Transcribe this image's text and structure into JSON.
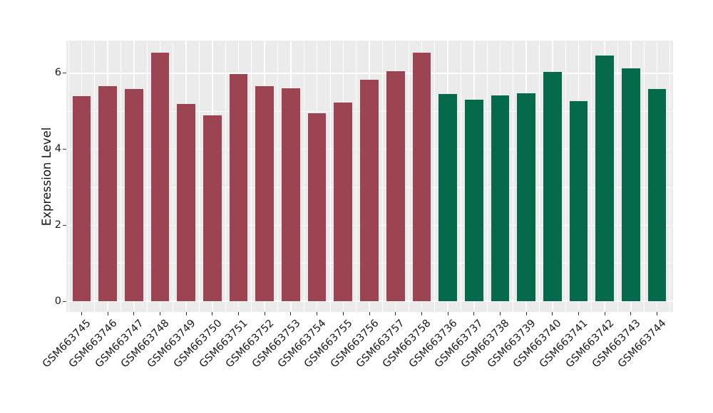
{
  "figure": {
    "background": "#FFFFFF",
    "panel_background": "#EBEBEB",
    "grid_color": "#FFFFFF",
    "tick_color": "#333333",
    "axis_text_color": "#1A1A1A"
  },
  "chart_data": {
    "type": "bar",
    "title": "",
    "xlabel": "",
    "ylabel": "Expression Level",
    "categories": [
      "GSM663745",
      "GSM663746",
      "GSM663747",
      "GSM663748",
      "GSM663749",
      "GSM663750",
      "GSM663751",
      "GSM663752",
      "GSM663753",
      "GSM663754",
      "GSM663755",
      "GSM663756",
      "GSM663757",
      "GSM663758",
      "GSM663736",
      "GSM663737",
      "GSM663738",
      "GSM663739",
      "GSM663740",
      "GSM663741",
      "GSM663742",
      "GSM663743",
      "GSM663744"
    ],
    "values": [
      5.39,
      5.67,
      5.58,
      6.54,
      5.2,
      4.89,
      5.98,
      5.67,
      5.61,
      4.94,
      5.23,
      5.83,
      6.05,
      6.55,
      5.46,
      5.31,
      5.42,
      5.47,
      6.04,
      5.26,
      6.46,
      6.13,
      5.59
    ],
    "bar_colors": [
      "#9D4452",
      "#9D4452",
      "#9D4452",
      "#9D4452",
      "#9D4452",
      "#9D4452",
      "#9D4452",
      "#9D4452",
      "#9D4452",
      "#9D4452",
      "#9D4452",
      "#9D4452",
      "#9D4452",
      "#9D4452",
      "#046A4B",
      "#046A4B",
      "#046A4B",
      "#046A4B",
      "#046A4B",
      "#046A4B",
      "#046A4B",
      "#046A4B",
      "#046A4B"
    ],
    "ylim": [
      -0.28,
      6.87
    ],
    "yticks": [
      0,
      2,
      4,
      6
    ],
    "yticks_minor": [
      1,
      3,
      5
    ],
    "grid": true,
    "legend": false,
    "bar_relative_width": 0.7
  }
}
